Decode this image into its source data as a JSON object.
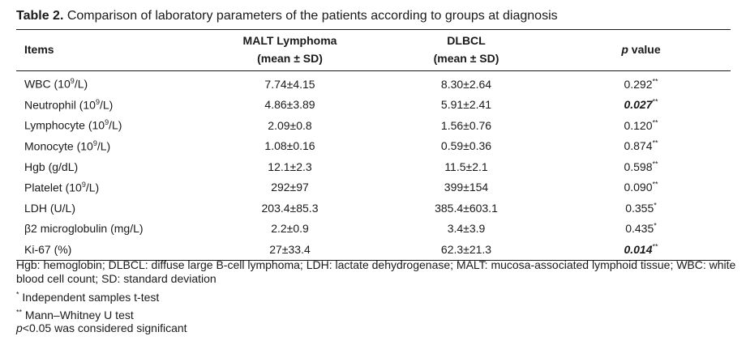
{
  "caption": {
    "label": "Table 2.",
    "text": " Comparison of laboratory parameters of the patients according to groups at diagnosis"
  },
  "table": {
    "headers": {
      "items": "Items",
      "malt_line1": "MALT Lymphoma",
      "malt_line2": "(mean ± SD)",
      "dlbcl_line1": "DLBCL",
      "dlbcl_line2": "(mean ± SD)",
      "p_italic": "p",
      "p_rest": " value"
    },
    "rows": [
      {
        "item_pre": "WBC (10",
        "item_sup": "9",
        "item_post": "/L)",
        "malt": "7.74±4.15",
        "dlbcl": "8.30±2.64",
        "p": "0.292",
        "mark": "**",
        "significant": false
      },
      {
        "item_pre": "Neutrophil (10",
        "item_sup": "9",
        "item_post": "/L)",
        "malt": "4.86±3.89",
        "dlbcl": "5.91±2.41",
        "p": "0.027",
        "mark": "**",
        "significant": true
      },
      {
        "item_pre": "Lymphocyte (10",
        "item_sup": "9",
        "item_post": "/L)",
        "malt": "2.09±0.8",
        "dlbcl": "1.56±0.76",
        "p": "0.120",
        "mark": "**",
        "significant": false
      },
      {
        "item_pre": "Monocyte (10",
        "item_sup": "9",
        "item_post": "/L)",
        "malt": "1.08±0.16",
        "dlbcl": "0.59±0.36",
        "p": "0.874",
        "mark": "**",
        "significant": false
      },
      {
        "item_pre": "Hgb (g/dL)",
        "item_sup": "",
        "item_post": "",
        "malt": "12.1±2.3",
        "dlbcl": "11.5±2.1",
        "p": "0.598",
        "mark": "**",
        "significant": false
      },
      {
        "item_pre": "Platelet (10",
        "item_sup": "9",
        "item_post": "/L)",
        "malt": "292±97",
        "dlbcl": "399±154",
        "p": "0.090",
        "mark": "**",
        "significant": false
      },
      {
        "item_pre": "LDH (U/L)",
        "item_sup": "",
        "item_post": "",
        "malt": "203.4±85.3",
        "dlbcl": "385.4±603.1",
        "p": "0.355",
        "mark": "*",
        "significant": false
      },
      {
        "item_pre": "β2 microglobulin (mg/L)",
        "item_sup": "",
        "item_post": "",
        "malt": "2.2±0.9",
        "dlbcl": "3.4±3.9",
        "p": "0.435",
        "mark": "*",
        "significant": false
      },
      {
        "item_pre": "Ki-67 (%)",
        "item_sup": "",
        "item_post": "",
        "malt": "27±33.4",
        "dlbcl": "62.3±21.3",
        "p": "0.014",
        "mark": "**",
        "significant": true
      }
    ]
  },
  "notes": {
    "abbreviations": "Hgb: hemoglobin; DLBCL: diffuse large B-cell lymphoma; LDH: lactate dehydrogenase; MALT: mucosa-associated lymphoid tissue; WBC: white blood cell count; SD: standard deviation",
    "fn1_mark": "*",
    "fn1_text": " Independent samples t-test",
    "fn2_mark": "**",
    "fn2_text": " Mann–Whitney U test",
    "sig_italic": "p",
    "sig_rest": "<0.05 was considered significant"
  }
}
